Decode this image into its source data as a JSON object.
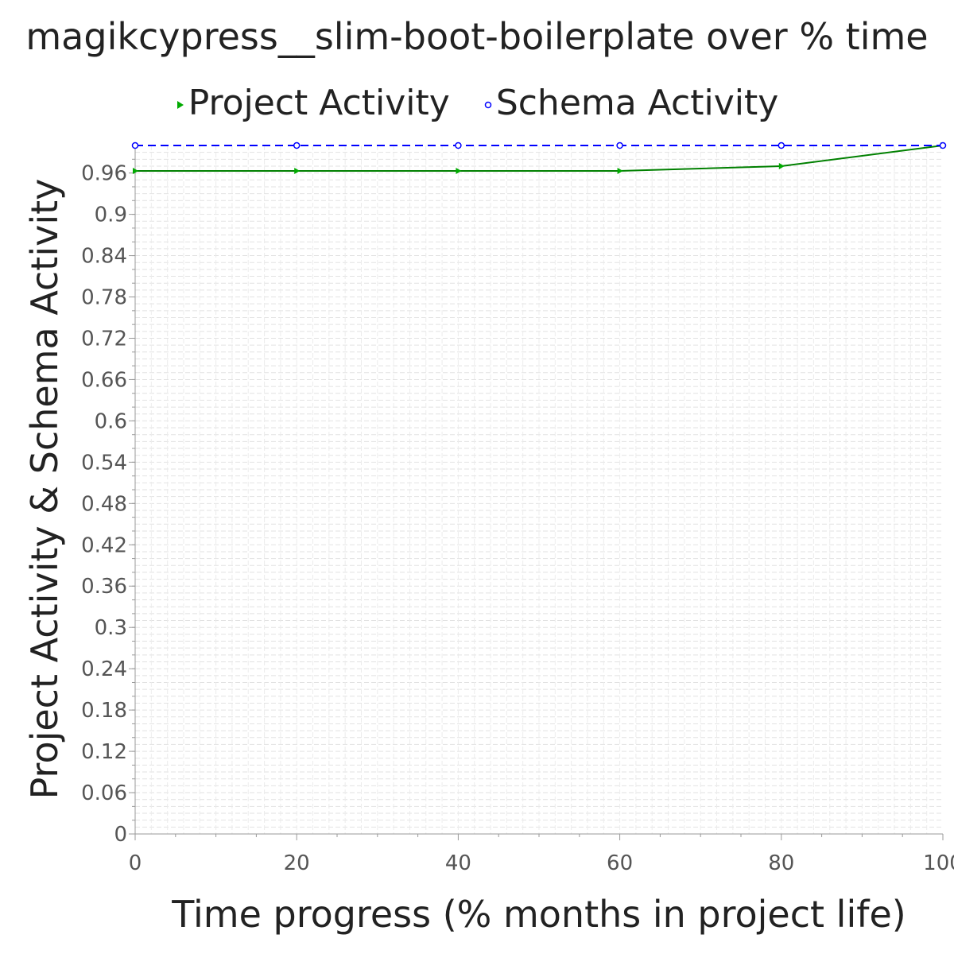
{
  "chart_data": {
    "type": "line",
    "title": "magikcypress__slim-boot-boilerplate over % time",
    "xlabel": "Time progress (% months in project life)",
    "ylabel": "Project Activity & Schema Activity",
    "xlim": [
      0,
      100
    ],
    "ylim": [
      0,
      1.0
    ],
    "x_ticks": [
      0,
      20,
      40,
      60,
      80,
      100
    ],
    "x_tick_labels": [
      "0",
      "20",
      "40",
      "60",
      "80",
      "100"
    ],
    "y_ticks": [
      0,
      0.06,
      0.12,
      0.18,
      0.24,
      0.3,
      0.36,
      0.42,
      0.48,
      0.54,
      0.6,
      0.66,
      0.72,
      0.78,
      0.84,
      0.9,
      0.96
    ],
    "y_tick_labels": [
      "0",
      "0.06",
      "0.12",
      "0.18",
      "0.24",
      "0.3",
      "0.36",
      "0.42",
      "0.48",
      "0.54",
      "0.6",
      "0.66",
      "0.72",
      "0.78",
      "0.84",
      "0.9",
      "0.96"
    ],
    "grid": true,
    "legend_position": "top",
    "series": [
      {
        "name": "Project Activity",
        "color": "#008000",
        "marker": "triangle-right",
        "line_style": "solid",
        "x": [
          0,
          20,
          40,
          60,
          80,
          100
        ],
        "y": [
          0.963,
          0.963,
          0.963,
          0.963,
          0.97,
          1.0
        ]
      },
      {
        "name": "Schema Activity",
        "color": "#0000ff",
        "marker": "circle",
        "line_style": "dashed",
        "x": [
          0,
          20,
          40,
          60,
          80,
          100
        ],
        "y": [
          1.0,
          1.0,
          1.0,
          1.0,
          1.0,
          1.0
        ]
      }
    ]
  }
}
